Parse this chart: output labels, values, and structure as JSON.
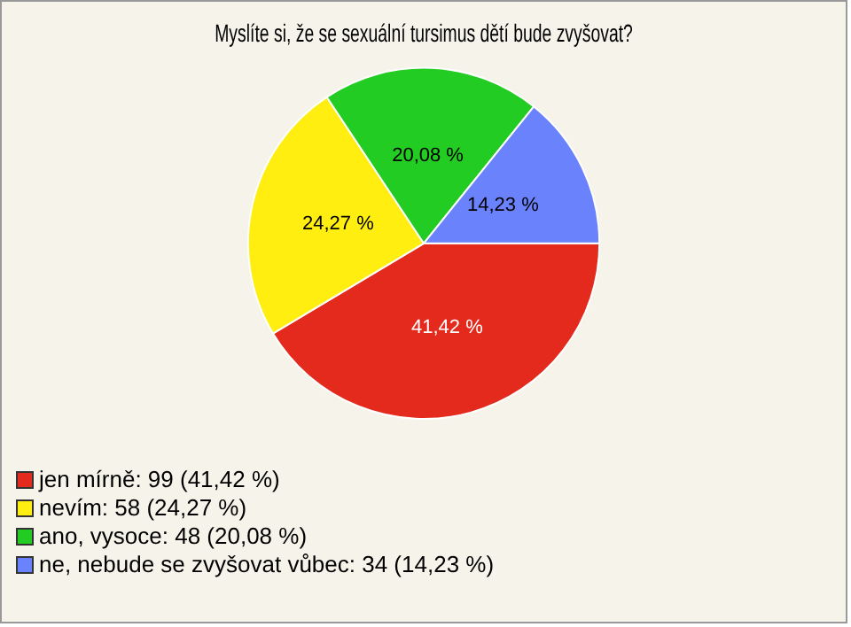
{
  "chart_data": {
    "type": "pie",
    "title": "Myslíte si, že se sexuální tursimus dětí bude zvyšovat?",
    "categories": [
      "jen mírně: 99 (41,42 %)",
      "nevím: 58 (24,27 %)",
      "ano, vysoce: 48 (20,08 %)",
      "ne, nebude se zvyšovat vůbec: 34 (14,23 %)"
    ],
    "values": [
      41.42,
      24.27,
      20.08,
      14.23
    ],
    "value_labels": [
      "41,42 %",
      "24,27 %",
      "20,08 %",
      "14,23 %"
    ],
    "colors": [
      "#e42a1c",
      "#ffee10",
      "#22cc22",
      "#6a82fc"
    ],
    "legend": "bottom left"
  }
}
